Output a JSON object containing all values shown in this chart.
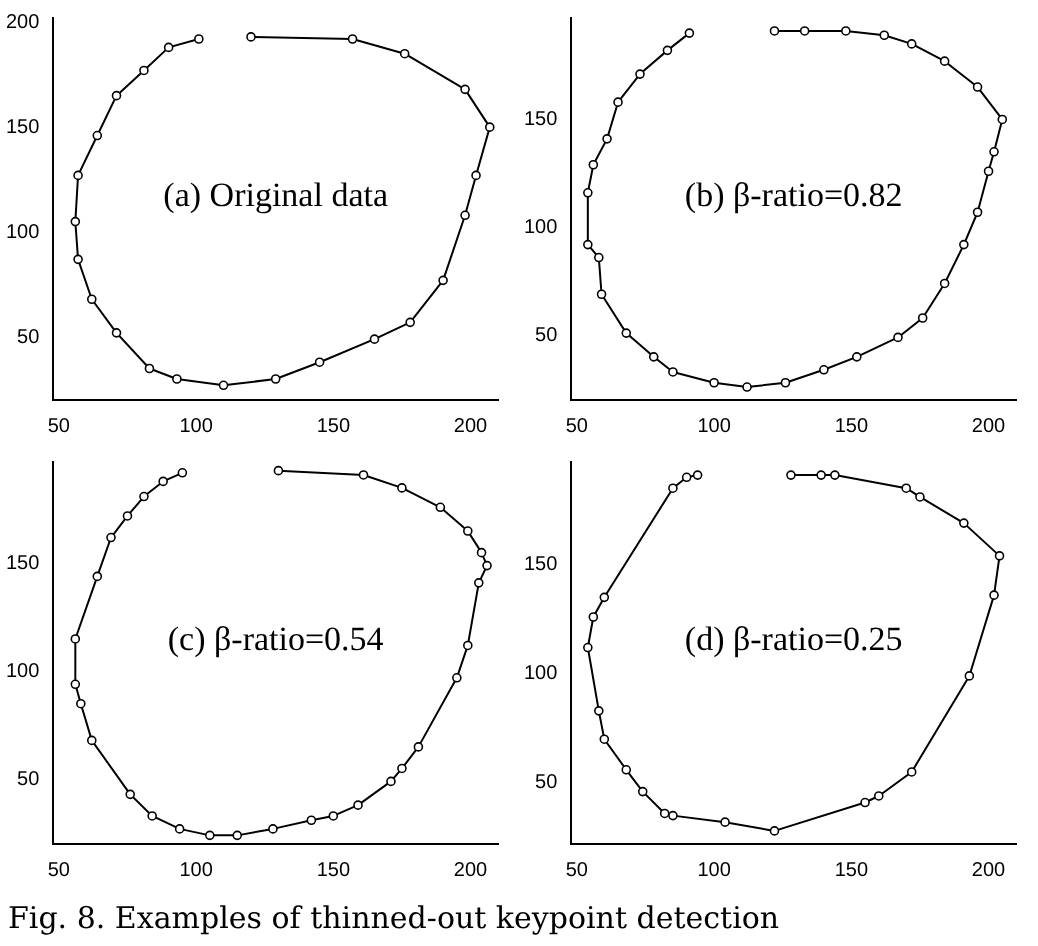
{
  "chart_data": [
    {
      "type": "line",
      "annotations": [
        "(a) Original data"
      ],
      "marker": "circle",
      "line_style": "solid",
      "grid": false,
      "legend": false,
      "xlim": [
        48,
        210
      ],
      "ylim": [
        20,
        202
      ],
      "xticks": [
        50,
        100,
        150,
        200
      ],
      "yticks": [
        50,
        100,
        150,
        200
      ],
      "series": [
        {
          "color": "#000000",
          "x": [
            120,
            157,
            176,
            198,
            207,
            202,
            198,
            190,
            178,
            165,
            145,
            129,
            110,
            93,
            83,
            71,
            62,
            57,
            56,
            57,
            64,
            71,
            81,
            90,
            101
          ],
          "values": [
            193,
            192,
            185,
            168,
            150,
            127,
            108,
            77,
            57,
            49,
            38,
            30,
            27,
            30,
            35,
            52,
            68,
            87,
            105,
            127,
            146,
            165,
            177,
            188,
            192
          ]
        }
      ]
    },
    {
      "type": "line",
      "annotations": [
        "(b) β-ratio=0.82"
      ],
      "marker": "circle",
      "line_style": "solid",
      "grid": false,
      "legend": false,
      "xlim": [
        48,
        210
      ],
      "ylim": [
        20,
        197
      ],
      "xticks": [
        50,
        100,
        150,
        200
      ],
      "yticks": [
        50,
        100,
        150
      ],
      "series": [
        {
          "color": "#000000",
          "x": [
            122,
            133,
            148,
            162,
            172,
            184,
            196,
            205,
            202,
            200,
            196,
            191,
            184,
            176,
            167,
            152,
            140,
            126,
            112,
            100,
            85,
            78,
            68,
            59,
            58,
            54,
            54,
            56,
            61,
            65,
            73,
            83,
            91
          ],
          "values": [
            191,
            191,
            191,
            189,
            185,
            177,
            165,
            150,
            135,
            126,
            107,
            92,
            74,
            58,
            49,
            40,
            34,
            28,
            26,
            28,
            33,
            40,
            51,
            69,
            86,
            92,
            116,
            129,
            141,
            158,
            171,
            182,
            190
          ]
        }
      ]
    },
    {
      "type": "line",
      "annotations": [
        "(c) β-ratio=0.54"
      ],
      "marker": "circle",
      "line_style": "solid",
      "grid": false,
      "legend": false,
      "xlim": [
        48,
        210
      ],
      "ylim": [
        20,
        197
      ],
      "xticks": [
        50,
        100,
        150,
        200
      ],
      "yticks": [
        50,
        100,
        150
      ],
      "series": [
        {
          "color": "#000000",
          "x": [
            130,
            161,
            175,
            189,
            199,
            204,
            206,
            203,
            199,
            195,
            181,
            175,
            171,
            159,
            150,
            142,
            128,
            115,
            105,
            94,
            84,
            76,
            62,
            58,
            56,
            56,
            64,
            69,
            75,
            81,
            88,
            95
          ],
          "values": [
            193,
            191,
            185,
            176,
            165,
            155,
            149,
            141,
            112,
            97,
            65,
            55,
            49,
            38,
            33,
            31,
            27,
            24,
            24,
            27,
            33,
            43,
            68,
            85,
            94,
            115,
            144,
            162,
            172,
            181,
            188,
            192
          ]
        }
      ]
    },
    {
      "type": "line",
      "annotations": [
        "(d) β-ratio=0.25",
        "Fig. 8. Examples of thinned-out keypoint detection"
      ],
      "marker": "circle",
      "line_style": "solid",
      "grid": false,
      "legend": false,
      "xlim": [
        48,
        210
      ],
      "ylim": [
        22,
        197
      ],
      "xticks": [
        50,
        100,
        150,
        200
      ],
      "yticks": [
        50,
        100,
        150
      ],
      "series": [
        {
          "color": "#000000",
          "x": [
            128,
            139,
            144,
            170,
            175,
            191,
            204,
            202,
            193,
            172,
            160,
            155,
            122,
            104,
            85,
            82,
            74,
            68,
            60,
            58,
            54,
            56,
            60,
            85,
            90,
            94
          ],
          "values": [
            191,
            191,
            191,
            185,
            181,
            169,
            154,
            136,
            99,
            55,
            44,
            41,
            28,
            32,
            35,
            36,
            46,
            56,
            70,
            83,
            112,
            126,
            135,
            185,
            190,
            191
          ]
        }
      ]
    }
  ]
}
